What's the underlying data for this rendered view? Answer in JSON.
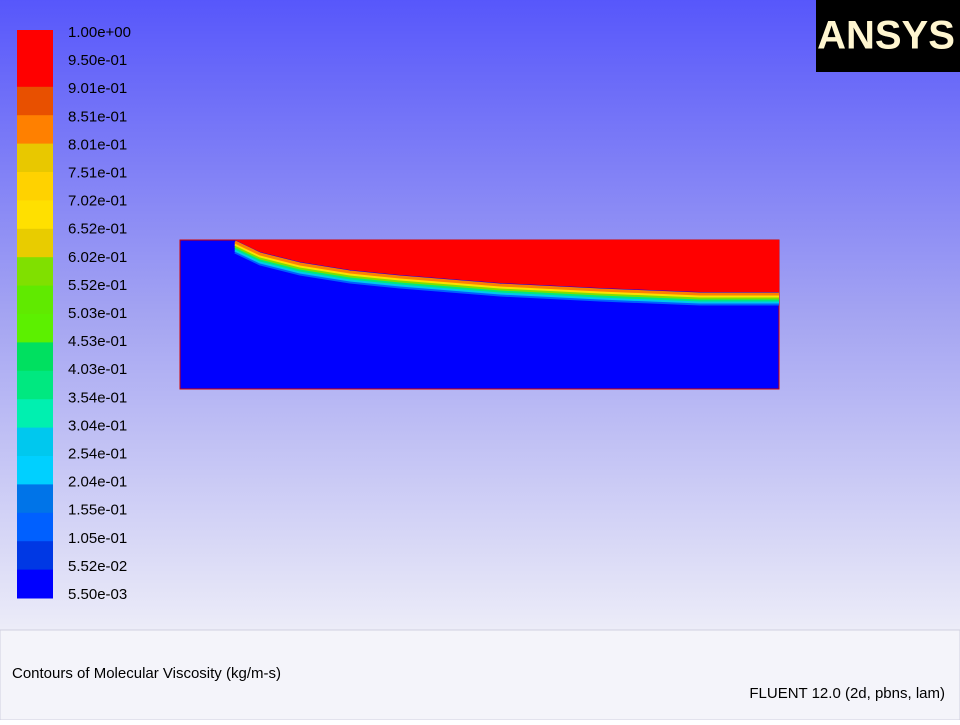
{
  "logo": "ANSYS",
  "legend": {
    "labels": [
      "1.00e+00",
      "9.50e-01",
      "9.01e-01",
      "8.51e-01",
      "8.01e-01",
      "7.51e-01",
      "7.02e-01",
      "6.52e-01",
      "6.02e-01",
      "5.52e-01",
      "5.03e-01",
      "4.53e-01",
      "4.03e-01",
      "3.54e-01",
      "3.04e-01",
      "2.54e-01",
      "2.04e-01",
      "1.55e-01",
      "1.05e-01",
      "5.52e-02",
      "5.50e-03"
    ],
    "colors": [
      "#ff0000",
      "#ff0000",
      "#e85000",
      "#ff8000",
      "#e8c800",
      "#ffd200",
      "#ffe000",
      "#e8cc00",
      "#80e000",
      "#60ea00",
      "#5cf000",
      "#00e060",
      "#00e880",
      "#00f0b0",
      "#00c8ee",
      "#00d0ff",
      "#0074e8",
      "#0060ff",
      "#0038e4",
      "#0000ff"
    ]
  },
  "footer": {
    "title": "Contours of Molecular Viscosity (kg/m-s)",
    "version": "FLUENT 12.0 (2d, pbns, lam)"
  }
}
